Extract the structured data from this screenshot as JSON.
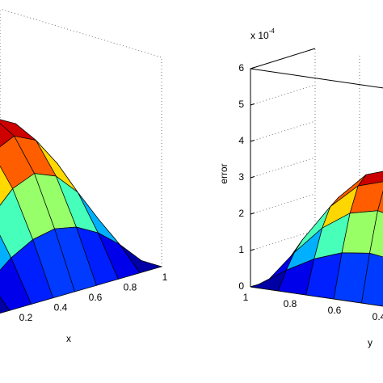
{
  "chart_data": [
    {
      "type": "surface",
      "xlabel": "x",
      "x": [
        0,
        0.125,
        0.25,
        0.375,
        0.5,
        0.625,
        0.75,
        0.875,
        1
      ],
      "y": [
        0,
        0.125,
        0.25,
        0.375,
        0.5,
        0.625,
        0.75,
        0.875,
        1
      ],
      "z": [
        [
          0,
          0,
          0,
          0,
          0,
          0,
          0,
          0,
          0
        ],
        [
          0,
          0.15,
          0.27,
          0.35,
          0.38,
          0.35,
          0.27,
          0.15,
          0
        ],
        [
          0,
          0.27,
          0.5,
          0.65,
          0.71,
          0.65,
          0.5,
          0.27,
          0
        ],
        [
          0,
          0.35,
          0.65,
          0.85,
          0.92,
          0.85,
          0.65,
          0.35,
          0
        ],
        [
          0,
          0.38,
          0.71,
          0.92,
          1,
          0.92,
          0.71,
          0.38,
          0
        ],
        [
          0,
          0.35,
          0.65,
          0.85,
          0.92,
          0.85,
          0.65,
          0.35,
          0
        ],
        [
          0,
          0.27,
          0.5,
          0.65,
          0.71,
          0.65,
          0.5,
          0.27,
          0
        ],
        [
          0,
          0.15,
          0.27,
          0.35,
          0.38,
          0.35,
          0.27,
          0.15,
          0
        ],
        [
          0,
          0,
          0,
          0,
          0,
          0,
          0,
          0,
          0
        ]
      ],
      "xlim": [
        0,
        1
      ],
      "ylim": [
        0,
        1
      ],
      "zlim": [
        0,
        1.4
      ],
      "xticks": [
        0.2,
        0.4,
        0.6,
        0.8,
        1
      ],
      "grid": true,
      "colormap": "jet"
    },
    {
      "type": "surface",
      "ylabel": "y",
      "zlabel": "error",
      "z_exponent_label": {
        "base": "x 10",
        "exponent": "-4"
      },
      "x": [
        0,
        0.125,
        0.25,
        0.375,
        0.5,
        0.625,
        0.75,
        0.875,
        1
      ],
      "y": [
        0,
        0.125,
        0.25,
        0.375,
        0.5,
        0.625,
        0.75,
        0.875,
        1
      ],
      "z": [
        [
          0,
          0,
          0,
          0,
          0,
          0,
          0,
          0,
          0
        ],
        [
          0,
          0.5,
          0.92,
          1.2,
          1.3,
          1.2,
          0.92,
          0.5,
          0
        ],
        [
          0,
          0.92,
          1.7,
          2.22,
          2.4,
          2.22,
          1.7,
          0.92,
          0
        ],
        [
          0,
          1.2,
          2.22,
          2.9,
          3.14,
          2.9,
          2.22,
          1.2,
          0
        ],
        [
          0,
          1.3,
          2.4,
          3.14,
          3.4,
          3.14,
          2.4,
          1.3,
          0
        ],
        [
          0,
          1.2,
          2.22,
          2.9,
          3.14,
          2.9,
          2.22,
          1.2,
          0
        ],
        [
          0,
          0.92,
          1.7,
          2.22,
          2.4,
          2.22,
          1.7,
          0.92,
          0
        ],
        [
          0,
          0.5,
          0.92,
          1.2,
          1.3,
          1.2,
          0.92,
          0.5,
          0
        ],
        [
          0,
          0,
          0,
          0,
          0,
          0,
          0,
          0,
          0
        ]
      ],
      "xlim": [
        0,
        1
      ],
      "ylim": [
        0,
        1
      ],
      "zlim": [
        0,
        6
      ],
      "yticks": [
        0.4,
        0.6,
        0.8,
        1
      ],
      "zticks": [
        0,
        1,
        2,
        3,
        4,
        5,
        6
      ],
      "grid": true,
      "colormap": "jet"
    }
  ]
}
